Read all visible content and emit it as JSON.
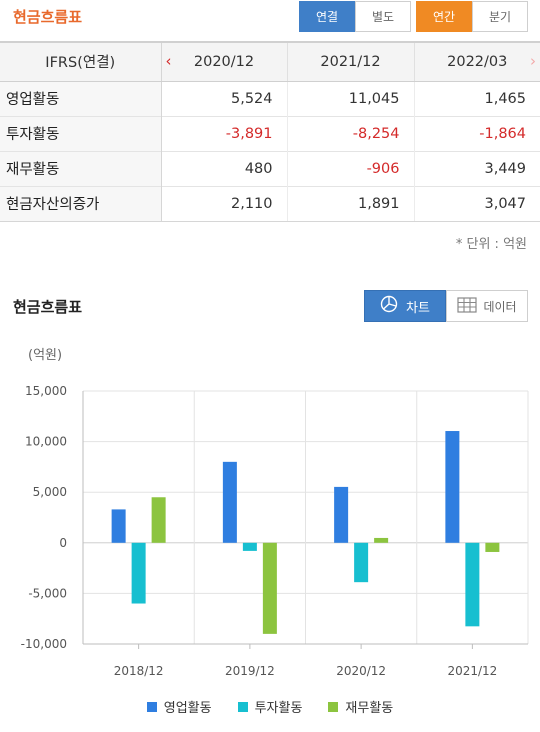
{
  "header": {
    "title": "현금흐름표",
    "consolidated_label": "연결",
    "separate_label": "별도",
    "annual_label": "연간",
    "quarterly_label": "분기"
  },
  "table": {
    "label_header": "IFRS(연결)",
    "periods": [
      "2020/12",
      "2021/12",
      "2022/03"
    ],
    "rows": [
      {
        "label": "영업활동",
        "values": [
          "5,524",
          "11,045",
          "1,465"
        ]
      },
      {
        "label": "투자활동",
        "values": [
          "-3,891",
          "-8,254",
          "-1,864"
        ]
      },
      {
        "label": "재무활동",
        "values": [
          "480",
          "-906",
          "3,449"
        ]
      },
      {
        "label": "현금자산의증가",
        "values": [
          "2,110",
          "1,891",
          "3,047"
        ]
      }
    ],
    "unit_note": "* 단위 : 억원"
  },
  "chart_section": {
    "title": "현금흐름표",
    "chart_button": "차트",
    "data_button": "데이터",
    "y_unit": "(억원)"
  },
  "colors": {
    "operating": "#2f7ee0",
    "investing": "#17bfd0",
    "financing": "#8cc43f",
    "negative": "#d42a2a",
    "accent": "#e8692c"
  },
  "chart_data": {
    "type": "bar",
    "categories": [
      "2018/12",
      "2019/12",
      "2020/12",
      "2021/12"
    ],
    "series": [
      {
        "name": "영업활동",
        "values": [
          3300,
          8000,
          5524,
          11045
        ]
      },
      {
        "name": "투자활동",
        "values": [
          -6000,
          -800,
          -3891,
          -8254
        ]
      },
      {
        "name": "재무활동",
        "values": [
          4500,
          -9000,
          480,
          -906
        ]
      }
    ],
    "ylim": [
      -10000,
      15000
    ],
    "yticks": [
      15000,
      10000,
      5000,
      0,
      -5000,
      -10000
    ],
    "ytick_labels": [
      "15,000",
      "10,000",
      "5,000",
      "0",
      "-5,000",
      "-10,000"
    ],
    "ylabel": "(억원)",
    "xlabel": "",
    "grid": true,
    "legend": "bottom"
  }
}
